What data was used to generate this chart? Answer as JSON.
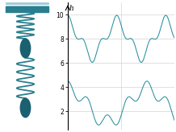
{
  "title": "h",
  "teal_color": "#2a7f8f",
  "spring_color": "#2a7f8f",
  "ball_color": "#1a6070",
  "ceil_color": "#2a7f8f",
  "hatch_color": "#8bbccc",
  "bg_color": "#ffffff",
  "grid_color": "#c8c8c8",
  "yticks": [
    2,
    4,
    6,
    8,
    10
  ],
  "ylim": [
    0.5,
    11
  ],
  "xlim": [
    0,
    13
  ],
  "upper_mean": 8.0,
  "lower_mean": 2.5,
  "upper_amp1": 1.4,
  "upper_amp2": 0.55,
  "upper_freq1": 1.05,
  "upper_freq2": 3.15,
  "lower_amp1": 1.4,
  "lower_amp2": 0.6,
  "lower_freq1": 0.65,
  "lower_freq2": 2.6,
  "line_color": "#2a8fa0",
  "line_width": 0.75,
  "tick_fontsize": 5.5,
  "mid_vline_x": 6.5
}
